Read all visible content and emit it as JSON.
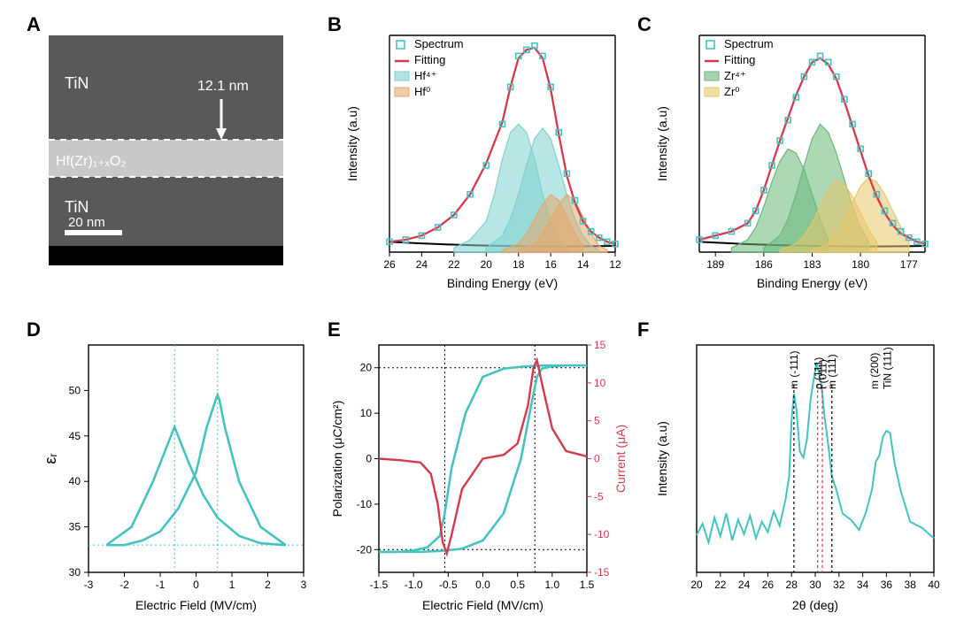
{
  "labels": {
    "A": "A",
    "B": "B",
    "C": "C",
    "D": "D",
    "E": "E",
    "F": "F"
  },
  "colors": {
    "teal": "#45c3c1",
    "red": "#d63a4a",
    "orange": "#e8a76a",
    "green": "#6ab87a",
    "yellow": "#e8c66a",
    "black": "#000000",
    "axis": "#333333",
    "bg": "#ffffff",
    "temImg": "#595959",
    "temBright": "#c8c8c8",
    "dashWhite": "#ffffff"
  },
  "font": {
    "axis_label": 14,
    "tick": 12,
    "legend": 13,
    "annot": 13
  },
  "panelA": {
    "top_text": "TiN",
    "bottom_text": "TiN",
    "mid_text": "Hf(Zr)₁₊ₓO₂",
    "thickness": "12.1 nm",
    "scale_text": "20 nm"
  },
  "panelB": {
    "xlabel": "Binding Energy (eV)",
    "ylabel": "Intensity (a.u)",
    "legend": [
      "Spectrum",
      "Fitting",
      "Hf⁴⁺",
      "Hf⁰"
    ],
    "xmin": 12,
    "xmax": 26,
    "xticks": [
      26,
      24,
      22,
      20,
      18,
      16,
      14,
      12
    ],
    "spectrum_x": [
      26,
      25,
      24,
      23,
      22,
      21,
      20,
      19,
      18.5,
      18,
      17.5,
      17,
      16.5,
      16,
      15.5,
      15,
      14.5,
      14,
      13.5,
      13,
      12.5,
      12
    ],
    "spectrum_y": [
      5,
      6,
      8,
      12,
      18,
      28,
      42,
      62,
      80,
      95,
      98,
      100,
      95,
      80,
      58,
      38,
      25,
      15,
      10,
      7,
      5,
      4
    ],
    "fit_y": [
      5,
      6,
      8,
      12,
      18,
      28,
      43,
      63,
      80,
      94,
      98,
      99,
      94,
      79,
      57,
      37,
      24,
      15,
      10,
      7,
      5,
      4
    ],
    "peak1": {
      "x": [
        22,
        21,
        20,
        19.5,
        19,
        18.5,
        18,
        17.5,
        17,
        16.5,
        16,
        15.5,
        15
      ],
      "y": [
        2,
        6,
        15,
        28,
        45,
        58,
        62,
        58,
        45,
        28,
        15,
        6,
        2
      ],
      "color": "#7ed1d0"
    },
    "peak2": {
      "x": [
        20,
        19,
        18.5,
        18,
        17.5,
        17,
        16.5,
        16,
        15.5,
        15,
        14.5,
        14,
        13.5,
        13
      ],
      "y": [
        2,
        8,
        16,
        28,
        42,
        55,
        60,
        55,
        42,
        28,
        16,
        8,
        3,
        1
      ],
      "color": "#7ed1d0"
    },
    "peak3": {
      "x": [
        19,
        18,
        17.5,
        17,
        16.5,
        16,
        15.5,
        15,
        14.5,
        14
      ],
      "y": [
        1,
        4,
        9,
        16,
        23,
        28,
        25,
        17,
        9,
        3
      ],
      "color": "#e8a76a"
    },
    "peak4": {
      "x": [
        18,
        17,
        16.5,
        16,
        15.5,
        15,
        14.5,
        14,
        13.5,
        13,
        12.5
      ],
      "y": [
        1,
        4,
        9,
        16,
        23,
        28,
        25,
        17,
        9,
        3,
        1
      ],
      "color": "#e8a76a"
    }
  },
  "panelC": {
    "xlabel": "Binding Energy (eV)",
    "ylabel": "Intensity (a.u)",
    "legend": [
      "Spectrum",
      "Fitting",
      "Zr⁴⁺",
      "Zr⁰"
    ],
    "xmin": 176,
    "xmax": 190,
    "xticks": [
      189,
      186,
      183,
      180,
      177
    ],
    "spectrum_x": [
      190,
      189,
      188,
      187,
      186.5,
      186,
      185.5,
      185,
      184.5,
      184,
      183.5,
      183,
      182.5,
      182,
      181.5,
      181,
      180.5,
      180,
      179.5,
      179,
      178.5,
      178,
      177.5,
      177,
      176.5,
      176
    ],
    "spectrum_y": [
      6,
      8,
      10,
      14,
      20,
      30,
      42,
      54,
      64,
      75,
      85,
      92,
      95,
      92,
      85,
      74,
      62,
      50,
      38,
      28,
      20,
      14,
      10,
      7,
      5,
      4
    ],
    "fit_y": [
      6,
      8,
      10,
      14,
      20,
      30,
      42,
      54,
      65,
      76,
      85,
      92,
      94,
      91,
      84,
      73,
      61,
      49,
      37,
      27,
      19,
      13,
      9,
      7,
      5,
      4
    ],
    "peak1": {
      "x": [
        188,
        187,
        186.5,
        186,
        185.5,
        185,
        184.5,
        184,
        183.5,
        183,
        182.5,
        182
      ],
      "y": [
        2,
        6,
        12,
        22,
        34,
        44,
        50,
        48,
        40,
        28,
        16,
        6
      ],
      "color": "#6ab87a"
    },
    "peak2": {
      "x": [
        186,
        185,
        184.5,
        184,
        183.5,
        183,
        182.5,
        182,
        181.5,
        181,
        180.5,
        180,
        179.5
      ],
      "y": [
        2,
        8,
        16,
        28,
        42,
        55,
        62,
        58,
        48,
        35,
        22,
        12,
        5
      ],
      "color": "#6ab87a"
    },
    "peak3": {
      "x": [
        185,
        184,
        183.5,
        183,
        182.5,
        182,
        181.5,
        181,
        180.5,
        180,
        179.5,
        179
      ],
      "y": [
        1,
        4,
        8,
        14,
        22,
        30,
        35,
        33,
        27,
        19,
        11,
        5
      ],
      "color": "#e8c66a"
    },
    "peak4": {
      "x": [
        183,
        182,
        181.5,
        181,
        180.5,
        180,
        179.5,
        179,
        178.5,
        178,
        177.5,
        177
      ],
      "y": [
        1,
        4,
        9,
        16,
        24,
        32,
        36,
        34,
        28,
        20,
        12,
        5
      ],
      "color": "#e8c66a"
    }
  },
  "panelD": {
    "xlabel": "Electric Field (MV/cm)",
    "ylabel": "εᵣ",
    "xmin": -3,
    "xmax": 3,
    "ymin": 30,
    "ymax": 55,
    "xticks": [
      -3,
      -2,
      -1,
      0,
      1,
      2,
      3
    ],
    "yticks": [
      30,
      35,
      40,
      45,
      50
    ],
    "vlines": [
      -0.6,
      0.6
    ],
    "hline": 33,
    "up_x": [
      -2.5,
      -2,
      -1.5,
      -1,
      -0.5,
      0,
      0.3,
      0.55,
      0.6,
      0.65,
      0.8,
      1.2,
      1.8,
      2.5
    ],
    "up_y": [
      33,
      33,
      33.5,
      34.5,
      37,
      41,
      46,
      49,
      49.5,
      49,
      46,
      40,
      35,
      33
    ],
    "dn_x": [
      2.5,
      1.8,
      1.2,
      0.6,
      0.2,
      -0.2,
      -0.5,
      -0.6,
      -0.65,
      -0.8,
      -1.2,
      -1.8,
      -2.5
    ],
    "dn_y": [
      33,
      33.2,
      34,
      36,
      38.5,
      42,
      45,
      46,
      45.5,
      44,
      40,
      35,
      33
    ]
  },
  "panelE": {
    "xlabel": "Electric Field (MV/cm)",
    "y1label": "Polarization (μC/cm²)",
    "y2label": "Current (μA)",
    "xmin": -1.5,
    "xmax": 1.5,
    "y1min": -25,
    "y1max": 25,
    "y2min": -15,
    "y2max": 15,
    "xticks": [
      -1.5,
      -1.0,
      -0.5,
      0.0,
      0.5,
      1.0,
      1.5
    ],
    "y1ticks": [
      -20,
      -10,
      0,
      10,
      20
    ],
    "y2ticks": [
      -15,
      -10,
      -5,
      0,
      5,
      10,
      15
    ],
    "hdash": [
      20,
      -20
    ],
    "vdash": [
      -0.55,
      0.75
    ],
    "pol_up_x": [
      -1.5,
      -1.2,
      -0.9,
      -0.6,
      -0.3,
      0,
      0.3,
      0.55,
      0.7,
      0.78,
      0.85,
      1.0,
      1.2,
      1.5
    ],
    "pol_up_y": [
      -20.5,
      -20.5,
      -20.5,
      -20.3,
      -19.8,
      -18,
      -12,
      0,
      12,
      18,
      19.8,
      20.3,
      20.5,
      20.5
    ],
    "pol_dn_x": [
      1.5,
      1.2,
      0.9,
      0.6,
      0.3,
      0,
      -0.25,
      -0.45,
      -0.55,
      -0.62,
      -0.8,
      -1.0,
      -1.2,
      -1.5
    ],
    "pol_dn_y": [
      20.5,
      20.5,
      20.5,
      20.3,
      19.8,
      18,
      10,
      -2,
      -12,
      -17,
      -19.5,
      -20.2,
      -20.5,
      -20.5
    ],
    "cur_x": [
      -1.5,
      -1.2,
      -0.9,
      -0.75,
      -0.65,
      -0.58,
      -0.52,
      -0.45,
      -0.3,
      0,
      0.3,
      0.5,
      0.65,
      0.73,
      0.78,
      0.85,
      1.0,
      1.2,
      1.5
    ],
    "cur_y": [
      0,
      -0.2,
      -0.5,
      -2,
      -6,
      -11,
      -12.5,
      -10,
      -4,
      0,
      0.5,
      2,
      7,
      12,
      13,
      10,
      4,
      1,
      0.3
    ]
  },
  "panelF": {
    "xlabel": "2θ (deg)",
    "ylabel": "Intensity (a.u)",
    "xmin": 20,
    "xmax": 40,
    "xticks": [
      20,
      22,
      24,
      26,
      28,
      30,
      32,
      34,
      36,
      38,
      40
    ],
    "vlines": [
      {
        "x": 28.2,
        "c": "#000"
      },
      {
        "x": 30.2,
        "c": "#d63a4a"
      },
      {
        "x": 30.6,
        "c": "#d63a4a"
      },
      {
        "x": 31.4,
        "c": "#000"
      }
    ],
    "annots": [
      {
        "x": 28.2,
        "t": "m (-111)"
      },
      {
        "x": 30.25,
        "t": "o (111)"
      },
      {
        "x": 30.65,
        "t": "t (011)"
      },
      {
        "x": 31.4,
        "t": "m (111)"
      },
      {
        "x": 35.0,
        "t": "m (200)"
      },
      {
        "x": 36.1,
        "t": "TiN (111)"
      }
    ],
    "trace_x": [
      20,
      20.5,
      21,
      21.5,
      22,
      22.5,
      23,
      23.5,
      24,
      24.5,
      25,
      25.5,
      26,
      26.5,
      27,
      27.5,
      27.8,
      28.0,
      28.2,
      28.4,
      28.7,
      29,
      29.3,
      29.6,
      29.9,
      30.1,
      30.3,
      30.5,
      30.8,
      31.1,
      31.4,
      31.8,
      32.3,
      33,
      33.7,
      34.3,
      34.8,
      35.1,
      35.4,
      35.7,
      36,
      36.3,
      36.7,
      37.2,
      38,
      39,
      40
    ],
    "trace_y": [
      18,
      22,
      16,
      25,
      19,
      27,
      17,
      24,
      20,
      26,
      18,
      23,
      21,
      28,
      24,
      34,
      48,
      72,
      88,
      78,
      60,
      54,
      66,
      82,
      96,
      100,
      98,
      90,
      76,
      60,
      48,
      38,
      30,
      24,
      22,
      28,
      42,
      52,
      58,
      64,
      70,
      66,
      54,
      38,
      26,
      20,
      18
    ]
  }
}
